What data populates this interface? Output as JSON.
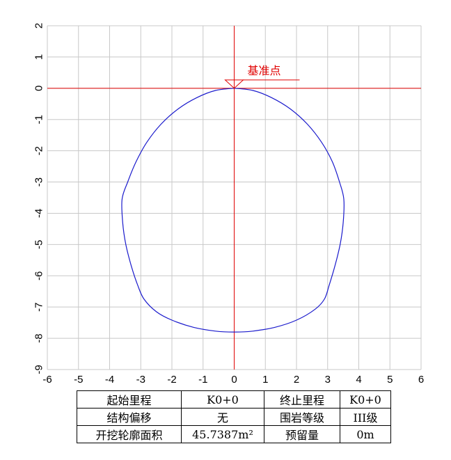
{
  "chart_data": {
    "type": "line",
    "xlim": [
      -6,
      6
    ],
    "ylim": [
      -9,
      2
    ],
    "x_ticks": [
      -6,
      -5,
      -4,
      -3,
      -2,
      -1,
      0,
      1,
      2,
      3,
      4,
      5,
      6
    ],
    "y_ticks": [
      2,
      1,
      0,
      -1,
      -2,
      -3,
      -4,
      -5,
      -6,
      -7,
      -8,
      -9
    ],
    "grid": true,
    "reference_lines": {
      "horizontal_y": 0,
      "vertical_x": 0,
      "color": "#e00000"
    },
    "annotation": {
      "label": "基准点",
      "x": 0,
      "y": 0,
      "color": "#e00000"
    },
    "series": [
      {
        "color": "#1a1acc",
        "points": [
          [
            0,
            0
          ],
          [
            0.6,
            -0.07
          ],
          [
            1.2,
            -0.3
          ],
          [
            1.8,
            -0.66
          ],
          [
            2.35,
            -1.15
          ],
          [
            2.8,
            -1.72
          ],
          [
            3.15,
            -2.35
          ],
          [
            3.38,
            -3.0
          ],
          [
            3.52,
            -3.55
          ],
          [
            3.5,
            -4.3
          ],
          [
            3.4,
            -5.0
          ],
          [
            3.23,
            -5.7
          ],
          [
            3.05,
            -6.3
          ],
          [
            2.9,
            -6.74
          ],
          [
            2.6,
            -7.07
          ],
          [
            2.0,
            -7.42
          ],
          [
            1.3,
            -7.65
          ],
          [
            0.6,
            -7.77
          ],
          [
            0,
            -7.8
          ],
          [
            -0.6,
            -7.77
          ],
          [
            -1.3,
            -7.65
          ],
          [
            -2.0,
            -7.42
          ],
          [
            -2.5,
            -7.15
          ],
          [
            -2.9,
            -6.74
          ],
          [
            -3.1,
            -6.3
          ],
          [
            -3.3,
            -5.7
          ],
          [
            -3.48,
            -5.0
          ],
          [
            -3.58,
            -4.3
          ],
          [
            -3.6,
            -3.55
          ],
          [
            -3.42,
            -3.0
          ],
          [
            -3.15,
            -2.35
          ],
          [
            -2.8,
            -1.72
          ],
          [
            -2.35,
            -1.15
          ],
          [
            -1.8,
            -0.66
          ],
          [
            -1.2,
            -0.3
          ],
          [
            -0.6,
            -0.07
          ],
          [
            0,
            0
          ]
        ]
      }
    ]
  },
  "info_table": {
    "r1": {
      "label1": "起始里程",
      "value1": "K0+0",
      "label2": "终止里程",
      "value2": "K0+0"
    },
    "r2": {
      "label1": "结构偏移",
      "value1": "无",
      "label2": "围岩等级",
      "value2": "III级"
    },
    "r3": {
      "label1": "开挖轮廓面积",
      "value1": "45.7387m²",
      "label2": "预留量",
      "value2": "0m"
    }
  }
}
